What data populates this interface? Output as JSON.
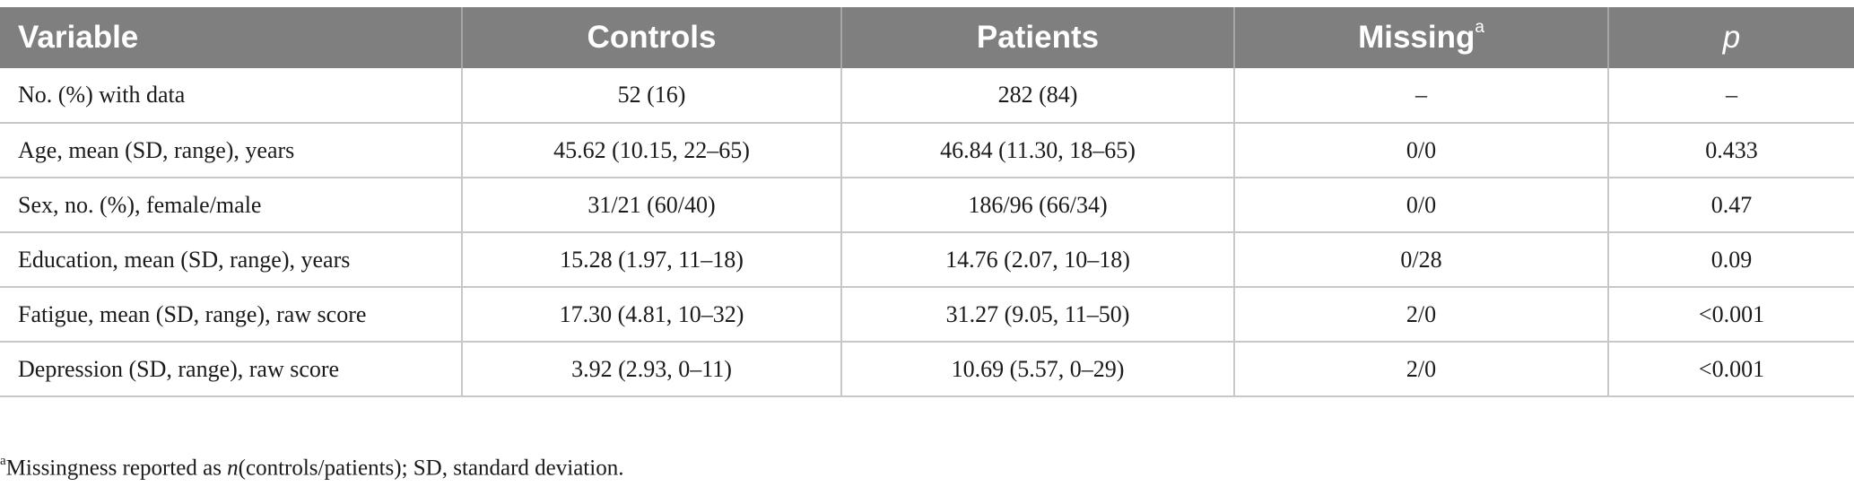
{
  "table": {
    "headers": {
      "variable": "Variable",
      "controls": "Controls",
      "patients": "Patients",
      "missing": "Missing",
      "missing_sup": "a",
      "p": "p"
    },
    "rows": [
      {
        "variable": "No. (%) with data",
        "controls": "52 (16)",
        "patients": "282 (84)",
        "missing": "–",
        "p": "–"
      },
      {
        "variable": "Age, mean (SD, range), years",
        "controls": "45.62 (10.15, 22–65)",
        "patients": "46.84 (11.30, 18–65)",
        "missing": "0/0",
        "p": "0.433"
      },
      {
        "variable": "Sex, no. (%), female/male",
        "controls": "31/21 (60/40)",
        "patients": "186/96 (66/34)",
        "missing": "0/0",
        "p": "0.47"
      },
      {
        "variable": "Education, mean (SD, range), years",
        "controls": "15.28 (1.97, 11–18)",
        "patients": "14.76 (2.07, 10–18)",
        "missing": "0/28",
        "p": "0.09"
      },
      {
        "variable": "Fatigue, mean (SD, range), raw score",
        "controls": "17.30 (4.81, 10–32)",
        "patients": "31.27 (9.05, 11–50)",
        "missing": "2/0",
        "p": "<0.001"
      },
      {
        "variable": "Depression (SD, range), raw score",
        "controls": "3.92 (2.93, 0–11)",
        "patients": "10.69 (5.57, 0–29)",
        "missing": "2/0",
        "p": "<0.001"
      }
    ]
  },
  "footnote": {
    "marker": "a",
    "text_before": "Missingness reported as ",
    "italic": "n",
    "text_after": "(controls/patients); SD, standard deviation."
  },
  "colors": {
    "header_bg": "#7f7f7f",
    "header_text": "#ffffff",
    "grid_line": "#c8c8c8"
  }
}
